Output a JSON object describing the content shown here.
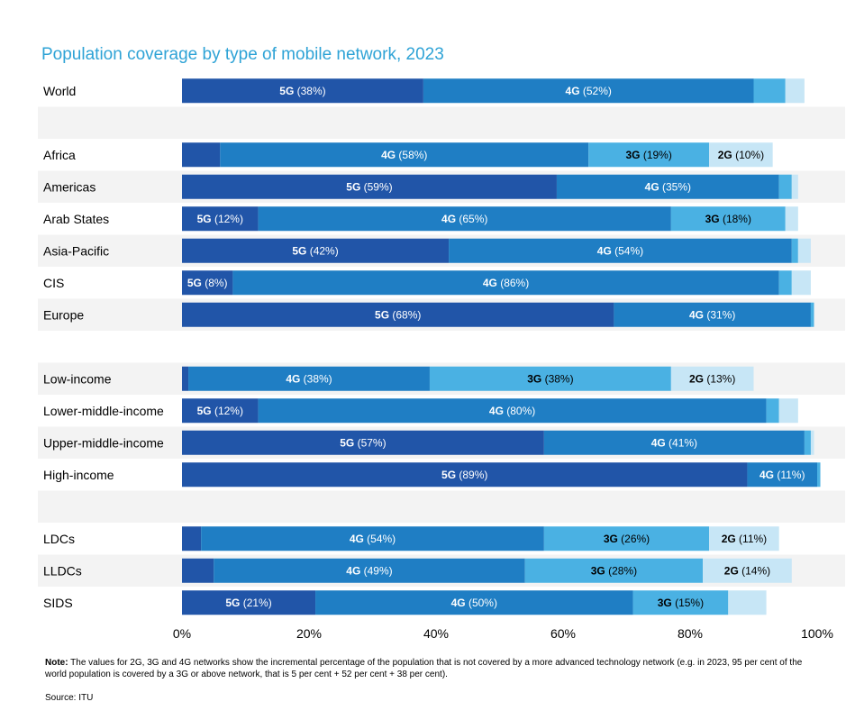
{
  "colors": {
    "5G": "#2155A8",
    "4G": "#1F7EC4",
    "3G": "#4AB1E3",
    "2G": "#C7E6F6",
    "band": "#F3F3F3",
    "title": "#2FA3D6"
  },
  "chart_data": {
    "type": "bar",
    "orientation": "horizontal",
    "stacked": true,
    "title": "Population coverage by type of mobile network, 2023",
    "xlabel": "",
    "ylabel": "",
    "xlim": [
      0,
      100
    ],
    "x_ticks": [
      "0%",
      "20%",
      "40%",
      "60%",
      "80%",
      "100%"
    ],
    "series_order": [
      "5G",
      "4G",
      "3G",
      "2G"
    ],
    "categories": [
      {
        "name": "World",
        "values": [
          38,
          52,
          5,
          3
        ]
      },
      {
        "name": "",
        "values": null
      },
      {
        "name": "Africa",
        "values": [
          6,
          58,
          19,
          10
        ]
      },
      {
        "name": "Americas",
        "values": [
          59,
          35,
          2,
          1
        ]
      },
      {
        "name": "Arab States",
        "values": [
          12,
          65,
          18,
          2
        ]
      },
      {
        "name": "Asia-Pacific",
        "values": [
          42,
          54,
          1,
          2
        ]
      },
      {
        "name": "CIS",
        "values": [
          8,
          86,
          2,
          3
        ]
      },
      {
        "name": "Europe",
        "values": [
          68,
          31,
          0.5,
          0
        ]
      },
      {
        "name": "",
        "values": null
      },
      {
        "name": "Low-income",
        "values": [
          1,
          38,
          38,
          13
        ]
      },
      {
        "name": "Lower-middle-income",
        "values": [
          12,
          80,
          2,
          3
        ]
      },
      {
        "name": "Upper-middle-income",
        "values": [
          57,
          41,
          1,
          0.5
        ]
      },
      {
        "name": "High-income",
        "values": [
          89,
          11,
          0.5,
          0
        ]
      },
      {
        "name": "",
        "values": null
      },
      {
        "name": "LDCs",
        "values": [
          3,
          54,
          26,
          11
        ]
      },
      {
        "name": "LLDCs",
        "values": [
          5,
          49,
          28,
          14
        ]
      },
      {
        "name": "SIDS",
        "values": [
          21,
          50,
          15,
          6
        ]
      }
    ],
    "data_labels": [
      [
        "5G (38%)",
        "4G (52%)",
        "",
        ""
      ],
      null,
      [
        "",
        "4G (58%)",
        "3G (19%)",
        "2G (10%)"
      ],
      [
        "5G (59%)",
        "4G (35%)",
        "",
        ""
      ],
      [
        "5G (12%)",
        "4G (65%)",
        "3G (18%)",
        ""
      ],
      [
        "5G (42%)",
        "4G (54%)",
        "",
        ""
      ],
      [
        "5G (8%)",
        "4G (86%)",
        "",
        ""
      ],
      [
        "5G (68%)",
        "4G (31%)",
        "",
        ""
      ],
      null,
      [
        "",
        "4G (38%)",
        "3G (38%)",
        "2G (13%)"
      ],
      [
        "5G (12%)",
        "4G (80%)",
        "",
        ""
      ],
      [
        "5G (57%)",
        "4G (41%)",
        "",
        ""
      ],
      [
        "5G (89%)",
        "4G (11%)",
        "",
        ""
      ],
      null,
      [
        "",
        "4G (54%)",
        "3G (26%)",
        "2G (11%)"
      ],
      [
        "",
        "4G (49%)",
        "3G (28%)",
        "2G (14%)"
      ],
      [
        "5G (21%)",
        "4G (50%)",
        "3G (15%)",
        ""
      ]
    ]
  },
  "note": {
    "bold": "Note:",
    "text": " The values for 2G, 3G and 4G networks show the incremental percentage of the population that is not covered by a more advanced technology network (e.g. in 2023, 95 per cent of the world population is covered by a 3G or above network, that is 5 per cent + 52 per cent + 38 per cent)."
  },
  "source": "Source: ITU"
}
